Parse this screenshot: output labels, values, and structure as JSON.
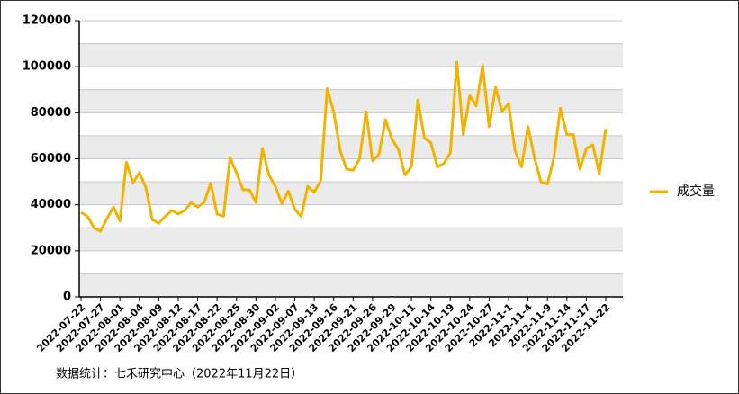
{
  "chart_data": {
    "type": "line",
    "source": "数据统计：七禾研究中心（2022年11月22日）",
    "categories": [
      "2022-07-22",
      null,
      null,
      "2022-07-27",
      null,
      null,
      "2022-08-01",
      null,
      null,
      "2022-08-04",
      null,
      null,
      "2022-08-09",
      null,
      null,
      "2022-08-12",
      null,
      null,
      "2022-08-17",
      null,
      null,
      "2022-08-22",
      null,
      null,
      "2022-08-25",
      null,
      null,
      "2022-08-30",
      null,
      null,
      "2022-09-02",
      null,
      null,
      "2022-09-07",
      null,
      null,
      "2022-09-13",
      null,
      null,
      "2022-09-16",
      null,
      null,
      "2022-09-21",
      null,
      null,
      "2022-09-26",
      null,
      null,
      "2022-09-29",
      null,
      null,
      "2022-10-11",
      null,
      null,
      "2022-10-14",
      null,
      null,
      "2022-10-19",
      null,
      null,
      "2022-10-24",
      null,
      null,
      "2022-10-27",
      null,
      null,
      "2022-11-1",
      null,
      null,
      "2022-11-4",
      null,
      null,
      "2022-11-9",
      null,
      null,
      "2022-11-14",
      null,
      null,
      "2022-11-17",
      null,
      null,
      "2022-11-22"
    ],
    "series": [
      {
        "name": "成交量",
        "color": "#f2b300",
        "values": [
          36700,
          35000,
          30000,
          28500,
          34000,
          39000,
          33000,
          58500,
          49500,
          54000,
          47500,
          33500,
          32000,
          35000,
          37500,
          36000,
          37500,
          41000,
          39000,
          41000,
          49500,
          36000,
          35000,
          60500,
          54000,
          46500,
          46500,
          41000,
          64500,
          53000,
          48000,
          40500,
          46000,
          38000,
          35000,
          48000,
          45500,
          50500,
          90500,
          80500,
          63500,
          55500,
          55000,
          60000,
          80500,
          59000,
          62000,
          77000,
          68500,
          64000,
          53000,
          56500,
          85500,
          69000,
          67000,
          56500,
          58000,
          62500,
          102000,
          70500,
          87500,
          83000,
          100500,
          74000,
          91000,
          80500,
          84000,
          63500,
          56500,
          74000,
          60500,
          50000,
          49000,
          60500,
          82000,
          70500,
          70500,
          55500,
          64500,
          66000,
          53500,
          73000
        ]
      }
    ],
    "ylim": [
      0,
      120000
    ],
    "yticks": [
      0,
      20000,
      40000,
      60000,
      80000,
      100000,
      120000
    ],
    "grid": true,
    "legend": "right"
  }
}
